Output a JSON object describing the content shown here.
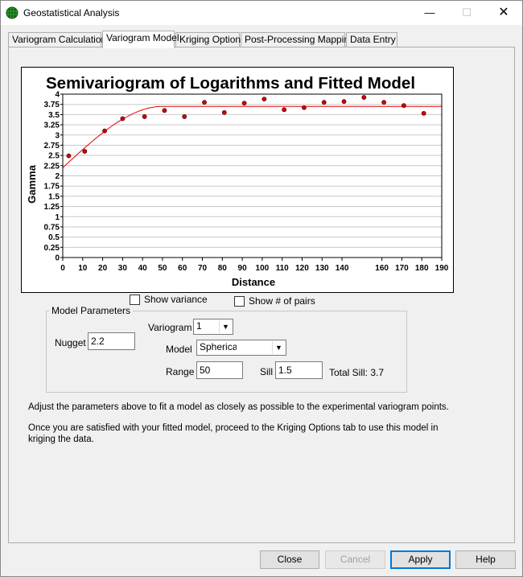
{
  "window": {
    "title": "Geostatistical Analysis",
    "min_glyph": "—",
    "max_glyph": "☐",
    "close_glyph": "✕"
  },
  "tabs": [
    {
      "label": "Variogram Calculation",
      "active": false
    },
    {
      "label": "Variogram Model",
      "active": true
    },
    {
      "label": "Kriging Options",
      "active": false
    },
    {
      "label": "Post-Processing Mapping",
      "active": false
    },
    {
      "label": "Data Entry",
      "active": false
    }
  ],
  "chart_data": {
    "type": "scatter",
    "title": "Semivariogram of Logarithms and Fitted Model",
    "xlabel": "Distance",
    "ylabel": "Gamma",
    "xlim": [
      0,
      190
    ],
    "ylim": [
      0,
      4
    ],
    "x_ticks": [
      0,
      10,
      20,
      30,
      40,
      50,
      60,
      70,
      80,
      90,
      100,
      110,
      120,
      130,
      140,
      160,
      170,
      180,
      190
    ],
    "y_ticks": [
      0,
      0.25,
      0.5,
      0.75,
      1,
      1.25,
      1.5,
      1.75,
      2,
      2.25,
      2.5,
      2.75,
      3,
      3.25,
      3.5,
      3.75,
      4
    ],
    "y_tick_labels": [
      "0",
      "0.25",
      "0.5",
      "0.75",
      "1",
      "1.25",
      "1.5",
      "1.75",
      "2",
      "2.25",
      "2.5",
      "2.75",
      "3",
      "3.25",
      "3.5",
      "3.75",
      "4"
    ],
    "grid": "horizontal",
    "points": {
      "x": [
        3,
        11,
        21,
        30,
        41,
        51,
        61,
        71,
        81,
        91,
        101,
        111,
        121,
        131,
        141,
        151,
        161,
        171,
        181
      ],
      "y": [
        2.49,
        2.6,
        3.1,
        3.4,
        3.45,
        3.6,
        3.45,
        3.8,
        3.55,
        3.78,
        3.88,
        3.62,
        3.67,
        3.8,
        3.82,
        3.92,
        3.8,
        3.72,
        3.53
      ],
      "color": "#cc0000"
    },
    "model": {
      "type": "spherical",
      "nugget": 2.2,
      "sill": 1.5,
      "range": 50,
      "color": "#e00000"
    }
  },
  "checkboxes": {
    "show_variance": {
      "label": "Show variance",
      "checked": false
    },
    "show_pairs": {
      "label": "Show # of pairs",
      "checked": false
    }
  },
  "model_params": {
    "legend": "Model Parameters",
    "nugget_label": "Nugget",
    "nugget_value": "2.2",
    "variogram_label": "Variogram",
    "variogram_value": "1",
    "model_label": "Model",
    "model_value": "Spherical",
    "range_label": "Range",
    "range_value": "50",
    "sill_label": "Sill",
    "sill_value": "1.5",
    "total_sill_text": "Total Sill: 3.7"
  },
  "instructions": {
    "line1": "Adjust the parameters above to fit a model as closely as possible to the experimental variogram points.",
    "line2": "Once you are satisfied with your fitted model, proceed to the Kriging Options tab to use this model in kriging the data."
  },
  "buttons": {
    "close": "Close",
    "cancel": "Cancel",
    "apply": "Apply",
    "help": "Help"
  },
  "colors": {
    "accent": "#0078d7"
  }
}
